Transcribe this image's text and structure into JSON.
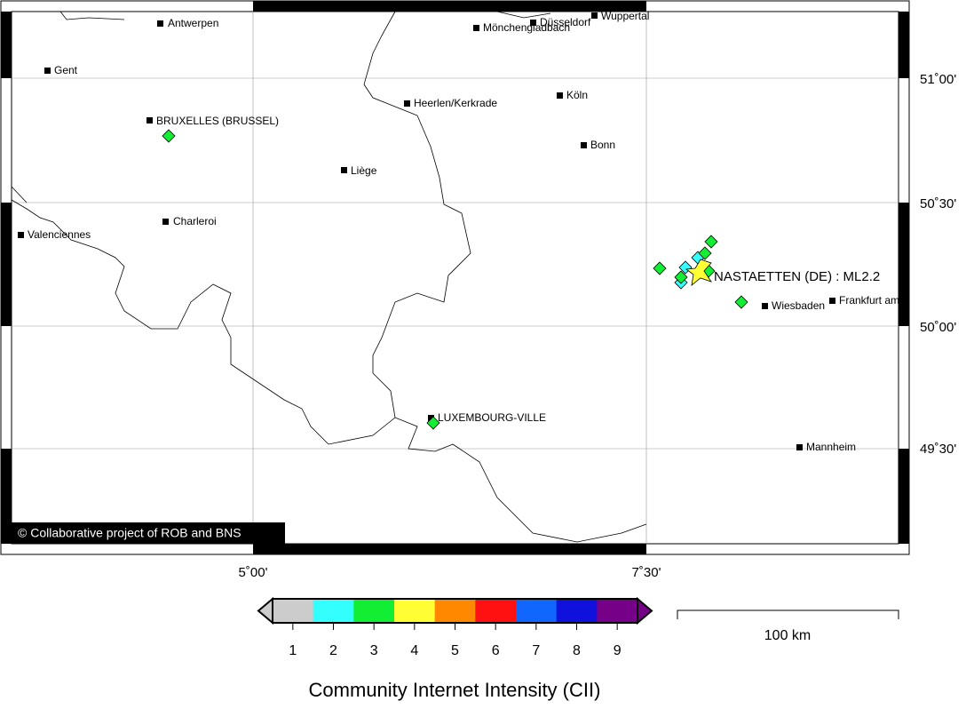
{
  "map": {
    "cities": [
      "Antwerpen",
      "Gent",
      "BRUXELLES (BRUSSEL)",
      "Valenciennes",
      "Charleroi",
      "Liège",
      "Heerlen/Kerkrade",
      "Mönchengladbach",
      "Düsseldorf",
      "Wuppertal",
      "Köln",
      "Bonn",
      "Wiesbaden",
      "Frankfurt am",
      "LUXEMBOURG-VILLE",
      "Mannheim"
    ],
    "event_label": "NASTAETTEN (DE) : ML2.2",
    "copyright": "© Collaborative project of ROB and BNS",
    "lat_labels": [
      "51˚00'",
      "50˚30'",
      "50˚00'",
      "49˚30'"
    ],
    "lon_labels": [
      "5˚00'",
      "7˚30'"
    ]
  },
  "colorbar": {
    "title": "Community Internet Intensity (CII)",
    "ticks": [
      1,
      2,
      3,
      4,
      5,
      6,
      7,
      8,
      9
    ],
    "colors": [
      "#cccccc",
      "#33ffff",
      "#11ee33",
      "#ffff33",
      "#ff8800",
      "#ff1111",
      "#1166ff",
      "#1111dd",
      "#770088"
    ]
  },
  "scale": {
    "label": "100 km"
  }
}
